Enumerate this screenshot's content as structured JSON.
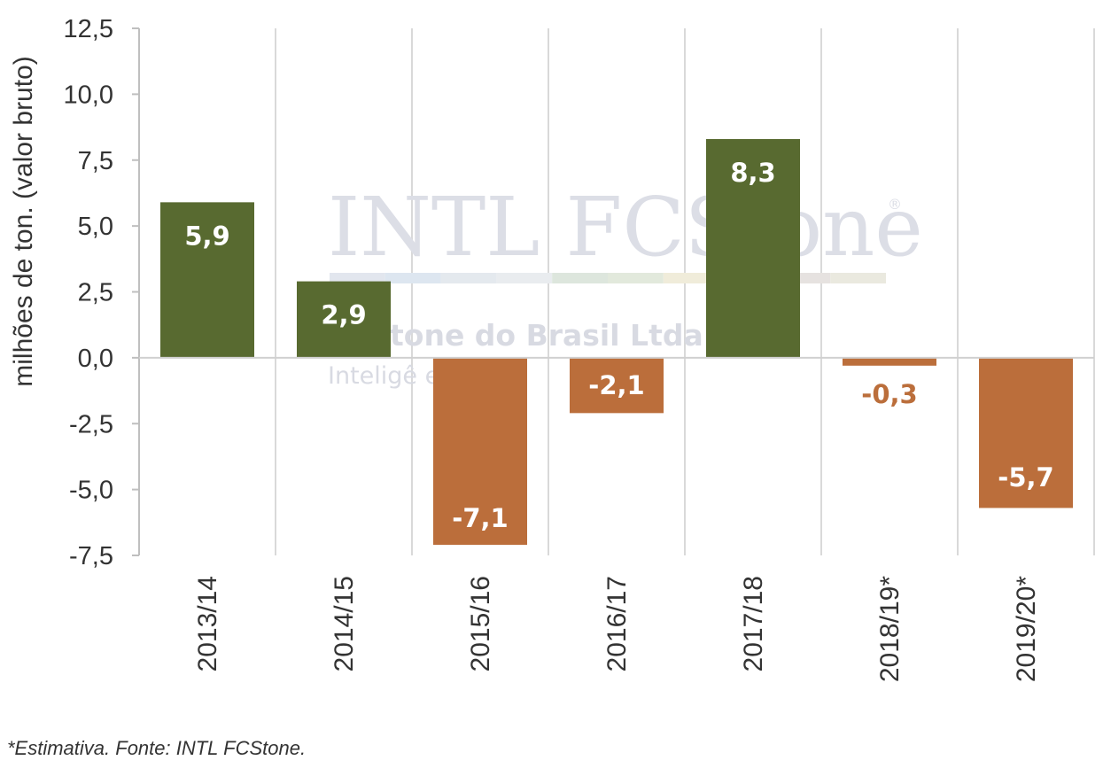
{
  "chart_data": {
    "type": "bar",
    "categories": [
      "2013/14",
      "2014/15",
      "2015/16",
      "2016/17",
      "2017/18",
      "2018/19*",
      "2019/20*"
    ],
    "values": [
      5.9,
      2.9,
      -7.1,
      -2.1,
      8.3,
      -0.3,
      -5.7
    ],
    "value_labels": [
      "5,9",
      "2,9",
      "-7,1",
      "-2,1",
      "8,3",
      "-0,3",
      "-5,7"
    ],
    "ylabel": "milhões de ton. (valor bruto)",
    "ylim": [
      -7.5,
      12.5
    ],
    "yticks": [
      12.5,
      10.0,
      7.5,
      5.0,
      2.5,
      0.0,
      -2.5,
      -5.0,
      -7.5
    ],
    "ytick_labels": [
      "12,5",
      "10,0",
      "7,5",
      "5,0",
      "2,5",
      "0,0",
      "-2,5",
      "-5,0",
      "-7,5"
    ],
    "grid": "vertical",
    "colors": {
      "positive": "#586a30",
      "negative": "#bb6e3b",
      "label_on_bar": "#ffffff"
    }
  },
  "watermark": {
    "logo_text": "INTL FCStone",
    "registered_mark": "®",
    "company": "tone do Brasil Ltda.",
    "tagline": "Inteligê      ercado"
  },
  "footnote": "*Estimativa. Fonte: INTL FCStone."
}
